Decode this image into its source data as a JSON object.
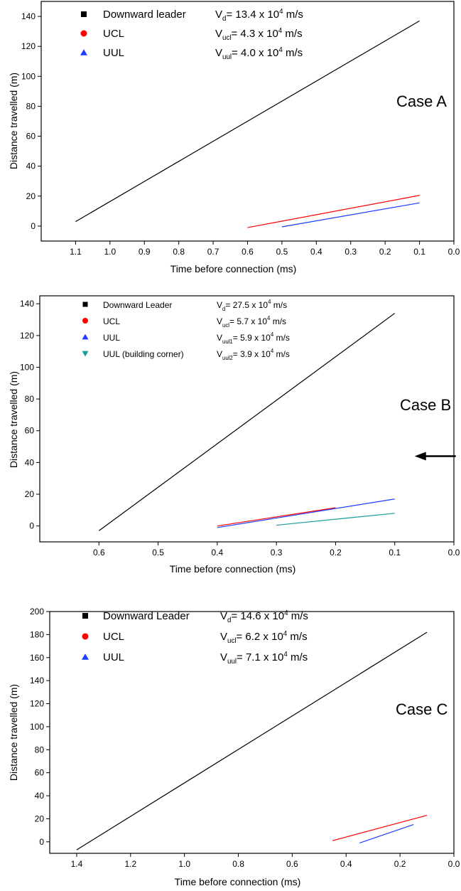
{
  "colors": {
    "downward": "#000000",
    "ucl": "#ff0000",
    "uul": "#1a3cff",
    "uul2": "#199c9c"
  },
  "chart_data": [
    {
      "type": "scatter",
      "annotation": "Case A",
      "xlabel": "Time before connection (ms)",
      "ylabel": "Distance travelled (m)",
      "xlim": [
        1.2,
        0.0
      ],
      "ylim": [
        -10,
        150
      ],
      "xticks": [
        "1.1",
        "1.0",
        "0.9",
        "0.8",
        "0.7",
        "0.6",
        "0.5",
        "0.4",
        "0.3",
        "0.2",
        "0.1",
        "0.0"
      ],
      "yticks": [
        "0",
        "20",
        "40",
        "60",
        "80",
        "100",
        "120",
        "140"
      ],
      "series": [
        {
          "name": "Downward leader",
          "velocity": [
            "V",
            "d",
            "= 13.4 x 10",
            "4",
            " m/s"
          ],
          "marker": "square",
          "color": "#000000",
          "x": [
            1.1,
            1.0,
            0.9,
            0.8,
            0.7,
            0.6,
            0.5,
            0.4,
            0.3,
            0.2,
            0.1
          ],
          "y": [
            0,
            17,
            29,
            45,
            60,
            72,
            84,
            99,
            106,
            125,
            135
          ],
          "fit": [
            [
              1.1,
              3
            ],
            [
              0.1,
              137
            ]
          ]
        },
        {
          "name": "UCL",
          "velocity": [
            "V",
            "ucl",
            "= 4.3 x 10",
            "4",
            " m/s"
          ],
          "marker": "circle",
          "color": "#ff0000",
          "x": [
            0.6,
            0.5,
            0.4,
            0.3,
            0.2,
            0.1
          ],
          "y": [
            0,
            3,
            7,
            11,
            15.5,
            21
          ],
          "fit": [
            [
              0.6,
              -1
            ],
            [
              0.1,
              20.5
            ]
          ]
        },
        {
          "name": "UUL",
          "velocity": [
            "V",
            "uul",
            "= 4.0 x 10",
            "4",
            " m/s"
          ],
          "marker": "triangle-up",
          "color": "#1a3cff",
          "x": [
            0.5,
            0.4,
            0.3,
            0.2,
            0.1
          ],
          "y": [
            0,
            3.5,
            7,
            11,
            16
          ],
          "fit": [
            [
              0.5,
              -0.5
            ],
            [
              0.1,
              15.5
            ]
          ]
        }
      ]
    },
    {
      "type": "scatter",
      "annotation": "Case B",
      "xlabel": "Time before connection (ms)",
      "ylabel": "Distance travelled (m)",
      "xlim": [
        0.7,
        0.0
      ],
      "ylim": [
        -10,
        145
      ],
      "xticks": [
        "0.6",
        "0.5",
        "0.4",
        "0.3",
        "0.2",
        "0.1",
        "0.0"
      ],
      "yticks": [
        "0",
        "20",
        "40",
        "60",
        "80",
        "100",
        "120",
        "140"
      ],
      "series": [
        {
          "name": "Downward Leader",
          "velocity": [
            "V",
            "d",
            "= 27.5 x 10",
            "4",
            " m/s"
          ],
          "marker": "square",
          "color": "#000000",
          "x": [
            0.6,
            0.5,
            0.4,
            0.3,
            0.2,
            0.1
          ],
          "y": [
            0,
            20,
            53,
            81,
            104,
            136
          ],
          "fit": [
            [
              0.6,
              -3
            ],
            [
              0.1,
              134
            ]
          ]
        },
        {
          "name": "UCL",
          "velocity": [
            "V",
            "ucl",
            "= 5.7 x 10",
            "4",
            " m/s"
          ],
          "marker": "circle",
          "color": "#ff0000",
          "x": [
            0.4,
            0.3,
            0.2,
            0.1
          ],
          "y": [
            0,
            6,
            11,
            44
          ],
          "fit": [
            [
              0.4,
              0
            ],
            [
              0.2,
              11.5
            ]
          ]
        },
        {
          "name": "UUL",
          "velocity": [
            "V",
            "uul1",
            "= 5.9 x 10",
            "4",
            " m/s"
          ],
          "marker": "triangle-up",
          "color": "#1a3cff",
          "x": [
            0.4,
            0.3,
            0.2,
            0.1
          ],
          "y": [
            0,
            4,
            9,
            18
          ],
          "fit": [
            [
              0.4,
              -1
            ],
            [
              0.1,
              17
            ]
          ]
        },
        {
          "name": "UUL (building corner)",
          "velocity": [
            "V",
            "uul2",
            "= 3.9 x 10",
            "4",
            " m/s"
          ],
          "marker": "triangle-down",
          "color": "#199c9c",
          "x": [
            0.3,
            0.2,
            0.1
          ],
          "y": [
            0,
            5,
            8
          ],
          "fit": [
            [
              0.3,
              0.5
            ],
            [
              0.1,
              8
            ]
          ]
        }
      ],
      "arrow_target": [
        0.1,
        44
      ]
    },
    {
      "type": "scatter",
      "annotation": "Case C",
      "xlabel": "Time before connection (ms)",
      "ylabel": "Distance travelled (m)",
      "xlim": [
        1.5,
        0.0
      ],
      "ylim": [
        -10,
        200
      ],
      "xticks": [
        "1.4",
        "1.2",
        "1.0",
        "0.8",
        "0.6",
        "0.4",
        "0.2",
        "0.0"
      ],
      "yticks": [
        "0",
        "20",
        "40",
        "60",
        "80",
        "100",
        "120",
        "140",
        "160",
        "180",
        "200"
      ],
      "series": [
        {
          "name": "Downward Leader",
          "velocity": [
            "V",
            "d",
            "= 14.6 x 10",
            "4",
            " m/s"
          ],
          "marker": "square",
          "color": "#000000",
          "x": [
            1.4,
            1.35,
            1.3,
            1.25,
            1.2,
            1.15,
            1.1,
            1.05,
            1.0,
            0.95,
            0.9,
            0.85,
            0.8,
            0.75,
            0.7,
            0.65,
            0.6,
            0.55,
            0.5,
            0.45,
            0.4,
            0.35,
            0.3,
            0.25,
            0.2,
            0.15,
            0.1
          ],
          "y": [
            0,
            6,
            13,
            15,
            24,
            33,
            38,
            49,
            54,
            60,
            65,
            68,
            75,
            79,
            85,
            90,
            99,
            109,
            123,
            134,
            141,
            155,
            163,
            174,
            177,
            180,
            184
          ],
          "fit": [
            [
              1.4,
              -7
            ],
            [
              0.1,
              182
            ]
          ]
        },
        {
          "name": "UCL",
          "velocity": [
            "V",
            "ucl",
            "= 6.2 x 10",
            "4",
            " m/s"
          ],
          "marker": "circle",
          "color": "#ff0000",
          "x": [
            0.45,
            0.4,
            0.35,
            0.3,
            0.25,
            0.2,
            0.15,
            0.1
          ],
          "y": [
            0,
            4,
            6,
            10,
            12,
            15.5,
            19,
            23
          ],
          "fit": [
            [
              0.45,
              1
            ],
            [
              0.1,
              23
            ]
          ]
        },
        {
          "name": "UUL",
          "velocity": [
            "V",
            "uul",
            "= 7.1 x 10",
            "4",
            " m/s"
          ],
          "marker": "triangle-up",
          "color": "#1a3cff",
          "x": [
            0.35,
            0.3,
            0.25,
            0.2,
            0.15
          ],
          "y": [
            0,
            4,
            8,
            11,
            15
          ],
          "fit": [
            [
              0.35,
              -1
            ],
            [
              0.15,
              15
            ]
          ]
        }
      ]
    }
  ]
}
